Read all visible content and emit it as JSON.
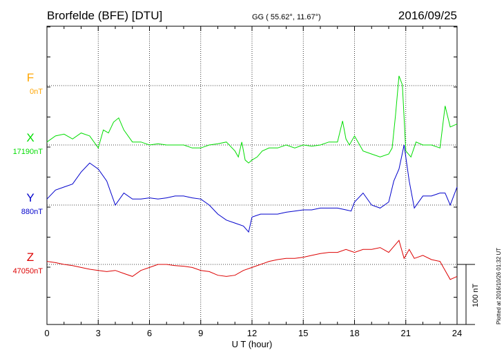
{
  "header": {
    "station": "Brorfelde (BFE)  [DTU]",
    "coords": "GG ( 55.62°,  11.67°)",
    "date": "2016/09/25"
  },
  "side_note": "Plotted at 2016/10/26 01:32 UT",
  "scale_label": "100 nT",
  "colors": {
    "F": "#ffa500",
    "X": "#00dd00",
    "Y": "#0000cc",
    "Z": "#dd0000",
    "axis": "#000000",
    "grid": "#000000"
  },
  "chart_data": {
    "type": "line",
    "xlabel": "U T (hour)",
    "xlim": [
      0,
      24
    ],
    "xticks": [
      0,
      3,
      6,
      9,
      12,
      15,
      18,
      21,
      24
    ],
    "xtick_labels": [
      "0",
      "3",
      "6",
      "9",
      "12",
      "15",
      "18",
      "21",
      "24"
    ],
    "grid": true,
    "series": [
      {
        "name": "F",
        "baseline_label": "0nT",
        "values_nT": []
      },
      {
        "name": "X",
        "baseline_label": "17190nT",
        "x": [
          0,
          0.5,
          1,
          1.5,
          2,
          2.5,
          3,
          3.3,
          3.6,
          3.9,
          4.2,
          4.5,
          5,
          5.5,
          6,
          6.5,
          7,
          7.5,
          8,
          8.5,
          9,
          9.5,
          10,
          10.5,
          11,
          11.2,
          11.4,
          11.6,
          11.8,
          12,
          12.3,
          12.6,
          13,
          13.5,
          14,
          14.5,
          15,
          15.5,
          16,
          16.5,
          17,
          17.3,
          17.5,
          17.7,
          18,
          18.5,
          19,
          19.5,
          20,
          20.2,
          20.4,
          20.6,
          20.8,
          21,
          21.3,
          21.6,
          22,
          22.5,
          23,
          23.3,
          23.6,
          24
        ],
        "values_nT": [
          5,
          15,
          18,
          10,
          20,
          15,
          -5,
          25,
          20,
          38,
          45,
          25,
          5,
          5,
          0,
          2,
          0,
          0,
          0,
          -5,
          -5,
          0,
          2,
          5,
          -10,
          -20,
          5,
          -25,
          -30,
          -25,
          -20,
          -10,
          -5,
          -5,
          0,
          -5,
          0,
          -2,
          0,
          5,
          5,
          40,
          10,
          0,
          15,
          -10,
          -15,
          -20,
          -15,
          -5,
          50,
          115,
          100,
          -10,
          -20,
          5,
          0,
          0,
          -5,
          65,
          30,
          35
        ]
      },
      {
        "name": "Y",
        "baseline_label": "880nT",
        "x": [
          0,
          0.5,
          1,
          1.5,
          2,
          2.5,
          3,
          3.5,
          4,
          4.5,
          5,
          5.5,
          6,
          6.5,
          7,
          7.5,
          8,
          8.5,
          9,
          9.5,
          10,
          10.5,
          11,
          11.5,
          11.8,
          12,
          12.5,
          13,
          13.5,
          14,
          14.5,
          15,
          15.5,
          16,
          16.5,
          17,
          17.5,
          17.8,
          18,
          18.5,
          19,
          19.5,
          20,
          20.3,
          20.6,
          20.9,
          21.2,
          21.5,
          22,
          22.5,
          23,
          23.3,
          23.6,
          24
        ],
        "values_nT": [
          10,
          25,
          30,
          35,
          55,
          70,
          60,
          40,
          0,
          20,
          10,
          10,
          12,
          10,
          12,
          15,
          15,
          12,
          10,
          0,
          -15,
          -25,
          -30,
          -35,
          -45,
          -20,
          -15,
          -15,
          -15,
          -12,
          -10,
          -8,
          -8,
          -5,
          -5,
          -5,
          -8,
          -10,
          5,
          20,
          0,
          -5,
          5,
          40,
          60,
          100,
          40,
          -5,
          15,
          15,
          20,
          20,
          0,
          30
        ]
      },
      {
        "name": "Z",
        "baseline_label": "47050nT",
        "x": [
          0,
          0.5,
          1,
          1.5,
          2,
          2.5,
          3,
          3.5,
          4,
          4.5,
          5,
          5.5,
          6,
          6.5,
          7,
          7.5,
          8,
          8.5,
          9,
          9.5,
          10,
          10.5,
          11,
          11.5,
          12,
          12.5,
          13,
          13.5,
          14,
          14.5,
          15,
          15.5,
          16,
          16.5,
          17,
          17.5,
          18,
          18.5,
          19,
          19.5,
          20,
          20.3,
          20.6,
          20.9,
          21.2,
          21.5,
          22,
          22.5,
          23,
          23.3,
          23.6,
          24
        ],
        "values_nT": [
          5,
          3,
          0,
          -2,
          -5,
          -8,
          -10,
          -12,
          -10,
          -15,
          -20,
          -10,
          -5,
          0,
          0,
          -2,
          -3,
          -5,
          -10,
          -12,
          -18,
          -20,
          -18,
          -10,
          -5,
          0,
          5,
          8,
          10,
          10,
          12,
          15,
          18,
          20,
          20,
          25,
          20,
          25,
          25,
          28,
          20,
          30,
          40,
          10,
          25,
          10,
          15,
          8,
          5,
          -10,
          -25,
          -20
        ]
      }
    ]
  }
}
